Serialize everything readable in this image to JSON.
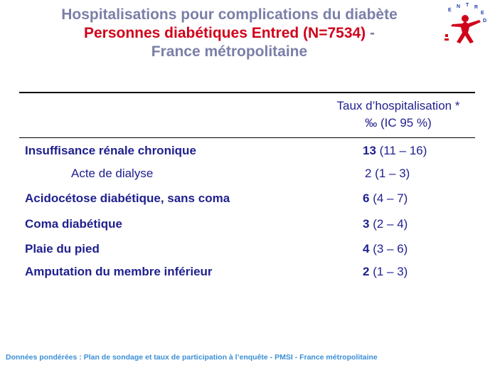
{
  "title": {
    "line1": "Hospitalisations pour complications du diabète",
    "line2_red": "Personnes diabétiques Entred (N=7534)",
    "line2_dash": " -",
    "line3": "France métropolitaine"
  },
  "logo": {
    "text": "ENTRED"
  },
  "table": {
    "header_line1": "Taux d’hospitalisation *",
    "header_line2": "‰ (IC 95 %)",
    "rows": [
      {
        "label": "Insuffisance rénale chronique",
        "value": "13",
        "ci": " (11 – 16)"
      },
      {
        "label": "Acte de dialyse",
        "value": "2 (1 – 3)"
      },
      {
        "label": "Acidocétose diabétique, sans coma",
        "value": "6",
        "ci": " (4 – 7)"
      },
      {
        "label": "Coma diabétique",
        "value": "3",
        "ci": " (2 – 4)"
      },
      {
        "label": "Plaie du pied",
        "value": "4",
        "ci": " (3 – 6)"
      },
      {
        "label": "Amputation du membre inférieur",
        "value": "2",
        "ci": " (1  – 3)"
      }
    ]
  },
  "footer": "Données pondérées : Plan de sondage et taux de participation à l’enquête - PMSI - France métropolitaine",
  "colors": {
    "title_grey": "#7b7fa8",
    "title_red": "#d0021b",
    "text_blue": "#1f1f8f",
    "footer_blue": "#3b8fd6"
  }
}
